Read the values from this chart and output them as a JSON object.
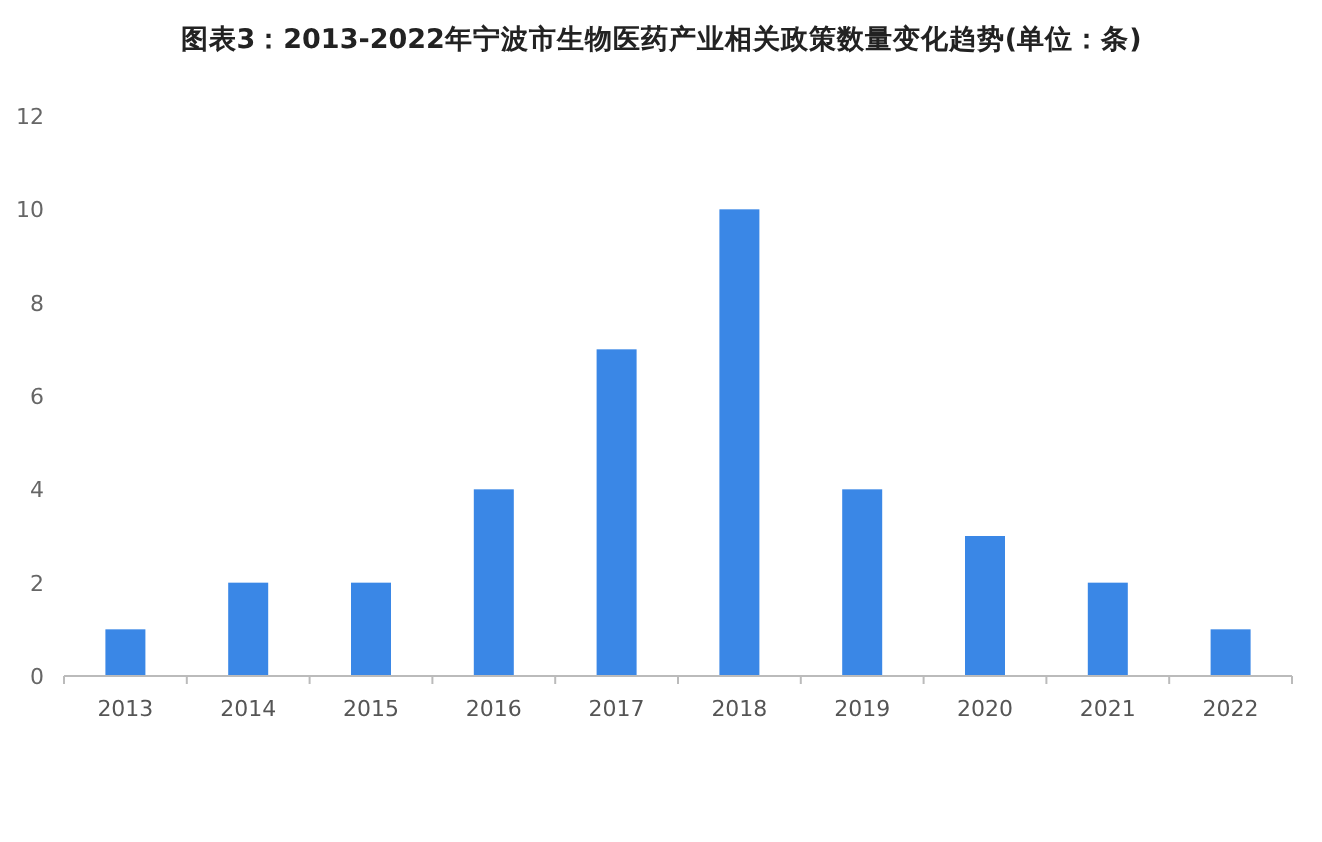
{
  "chart_data": {
    "type": "bar",
    "title": "图表3：2013-2022年宁波市生物医药产业相关政策数量变化趋势(单位：条)",
    "categories": [
      "2013",
      "2014",
      "2015",
      "2016",
      "2017",
      "2018",
      "2019",
      "2020",
      "2021",
      "2022"
    ],
    "values": [
      1,
      2,
      2,
      4,
      7,
      10,
      4,
      3,
      2,
      1
    ],
    "color": "#3a87e6",
    "ylim": [
      0,
      12
    ],
    "yticks": [
      0,
      2,
      4,
      6,
      8,
      10,
      12
    ]
  }
}
